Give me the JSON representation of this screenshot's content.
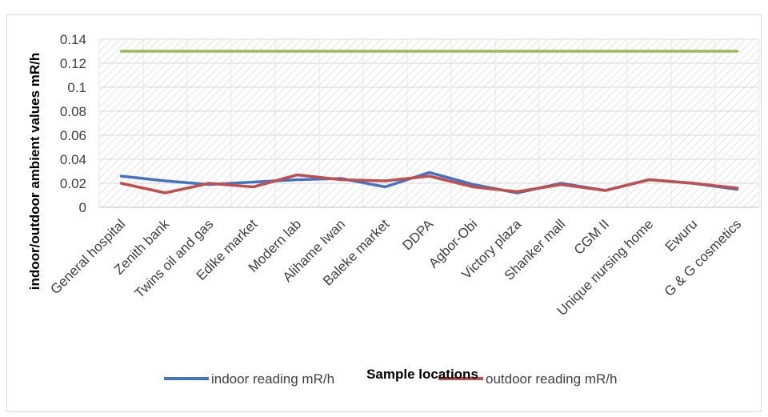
{
  "chart_data": {
    "type": "line",
    "title": "",
    "xlabel": "Sample locations",
    "ylabel": "indoor/outdoor ambient values mR/h",
    "ylim": [
      0,
      0.14
    ],
    "y_ticks": [
      "0",
      "0.02",
      "0.04",
      "0.06",
      "0.08",
      "0.1",
      "0.12",
      "0.14"
    ],
    "grid": true,
    "legend_position": "bottom",
    "categories": [
      "General hospital",
      "Zenith bank",
      "Twins oil and gas",
      "Edike market",
      "Modern lab",
      "Alihame Iwan",
      "Baleke market",
      "DDPA",
      "Agbor-Obi",
      "Victory plaza",
      "Shanker mall",
      "CGM II",
      "Unique nursing home",
      "Ewuru",
      "G & G cosmetics"
    ],
    "series": [
      {
        "name": "indoor reading mR/h",
        "color": "#4472c4",
        "show_in_legend": true,
        "values": [
          0.026,
          0.022,
          0.019,
          0.021,
          0.023,
          0.024,
          0.017,
          0.029,
          0.019,
          0.012,
          0.02,
          0.014,
          0.023,
          0.02,
          0.015
        ]
      },
      {
        "name": "outdoor reading mR/h",
        "color": "#c0504d",
        "show_in_legend": true,
        "values": [
          0.02,
          0.012,
          0.02,
          0.017,
          0.027,
          0.023,
          0.022,
          0.026,
          0.017,
          0.013,
          0.019,
          0.014,
          0.023,
          0.02,
          0.016
        ]
      },
      {
        "name": "",
        "color": "#9bbb59",
        "show_in_legend": false,
        "values": [
          0.13,
          0.13,
          0.13,
          0.13,
          0.13,
          0.13,
          0.13,
          0.13,
          0.13,
          0.13,
          0.13,
          0.13,
          0.13,
          0.13,
          0.13
        ]
      }
    ]
  }
}
